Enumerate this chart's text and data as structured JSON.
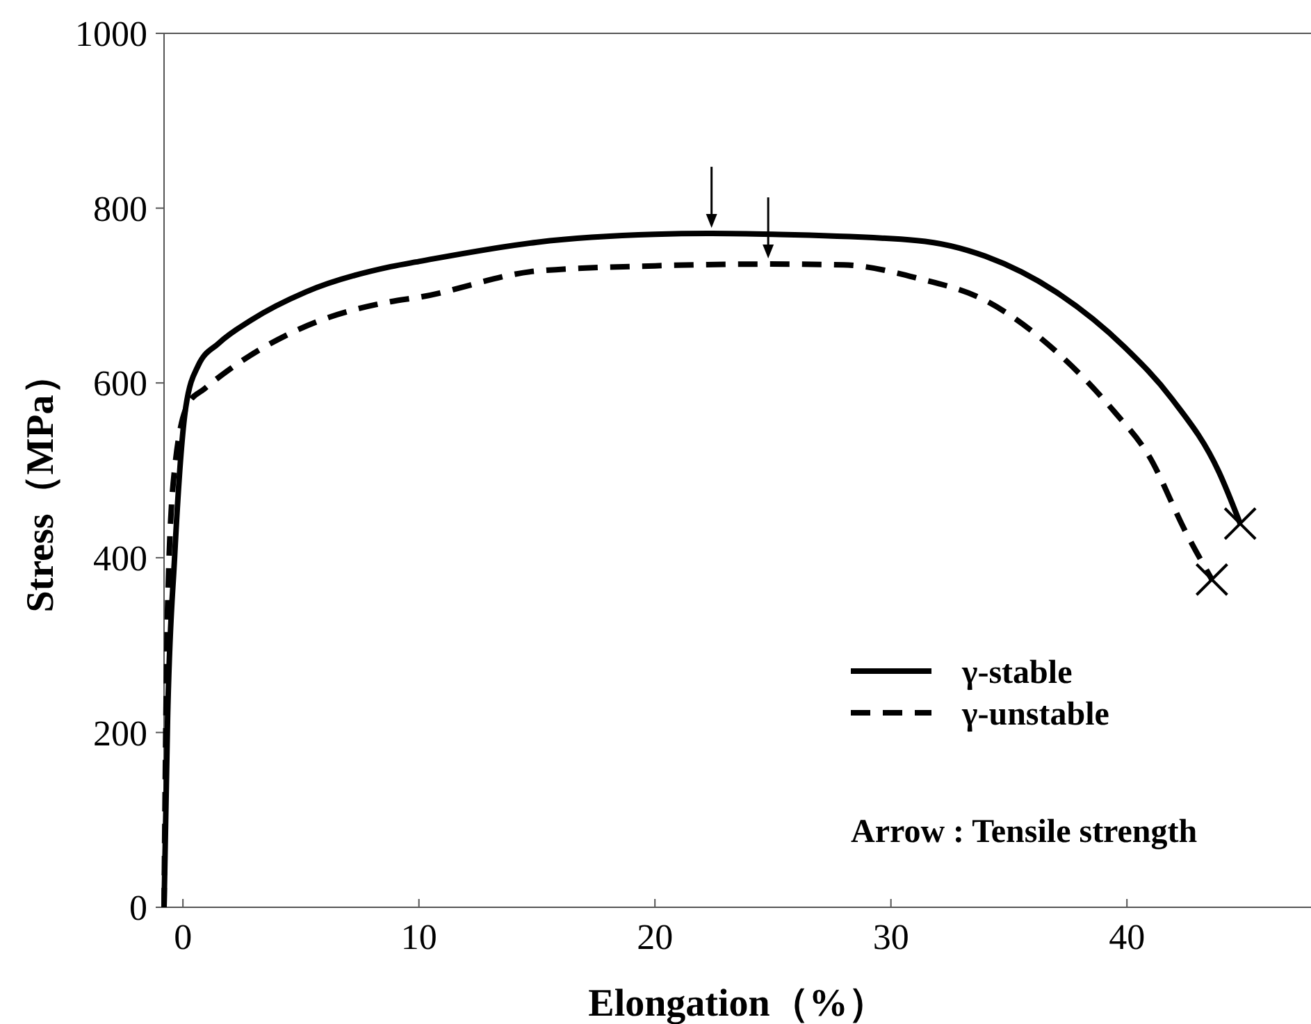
{
  "chart_data": {
    "type": "line",
    "xlabel": "Elongation（%）",
    "ylabel": "Stress（MPa）",
    "xlim": [
      -0.8,
      47.8
    ],
    "ylim": [
      0,
      1000
    ],
    "xticks": [
      0,
      10,
      20,
      30,
      40
    ],
    "yticks": [
      0,
      200,
      400,
      600,
      800,
      1000
    ],
    "grid": false,
    "legend": "bottom right",
    "marker": "none",
    "series": [
      {
        "name": "γ-stable",
        "color": "#000000",
        "line_style": "solid",
        "x": [
          -0.8,
          -0.65,
          -0.35,
          0.12,
          0.65,
          1.5,
          2.9,
          5.2,
          8.8,
          10,
          15,
          20,
          22.4,
          25,
          31.1,
          34,
          37,
          39.9,
          41.9,
          43.9,
          44.8
        ],
        "values": [
          0,
          216,
          402,
          572,
          620,
          645,
          672,
          704,
          733,
          739,
          761,
          770,
          771,
          770,
          763,
          745,
          704,
          641,
          582,
          498,
          439
        ]
      },
      {
        "name": "γ-unstable",
        "color": "#000000",
        "line_style": "dashed",
        "x": [
          -0.8,
          -0.65,
          -0.35,
          0.24,
          0.9,
          1.9,
          4.8,
          8.8,
          10,
          15,
          20,
          24.8,
          28,
          31.1,
          34.1,
          37,
          39.5,
          40.9,
          42.5,
          43.6
        ],
        "values": [
          0,
          343,
          502,
          577,
          593,
          614,
          660,
          693,
          698,
          728,
          734,
          736,
          735,
          720,
          693,
          636,
          566,
          518,
          429,
          375
        ]
      },
      {
        "type": "scatter",
        "marker": "cross",
        "color": "#000000",
        "x": [
          44.8
        ],
        "values": [
          439
        ]
      },
      {
        "type": "scatter",
        "marker": "cross",
        "color": "#000000",
        "x": [
          43.6
        ],
        "values": [
          375
        ]
      }
    ],
    "annotations": [
      "Arrow : Tensile strength"
    ]
  }
}
